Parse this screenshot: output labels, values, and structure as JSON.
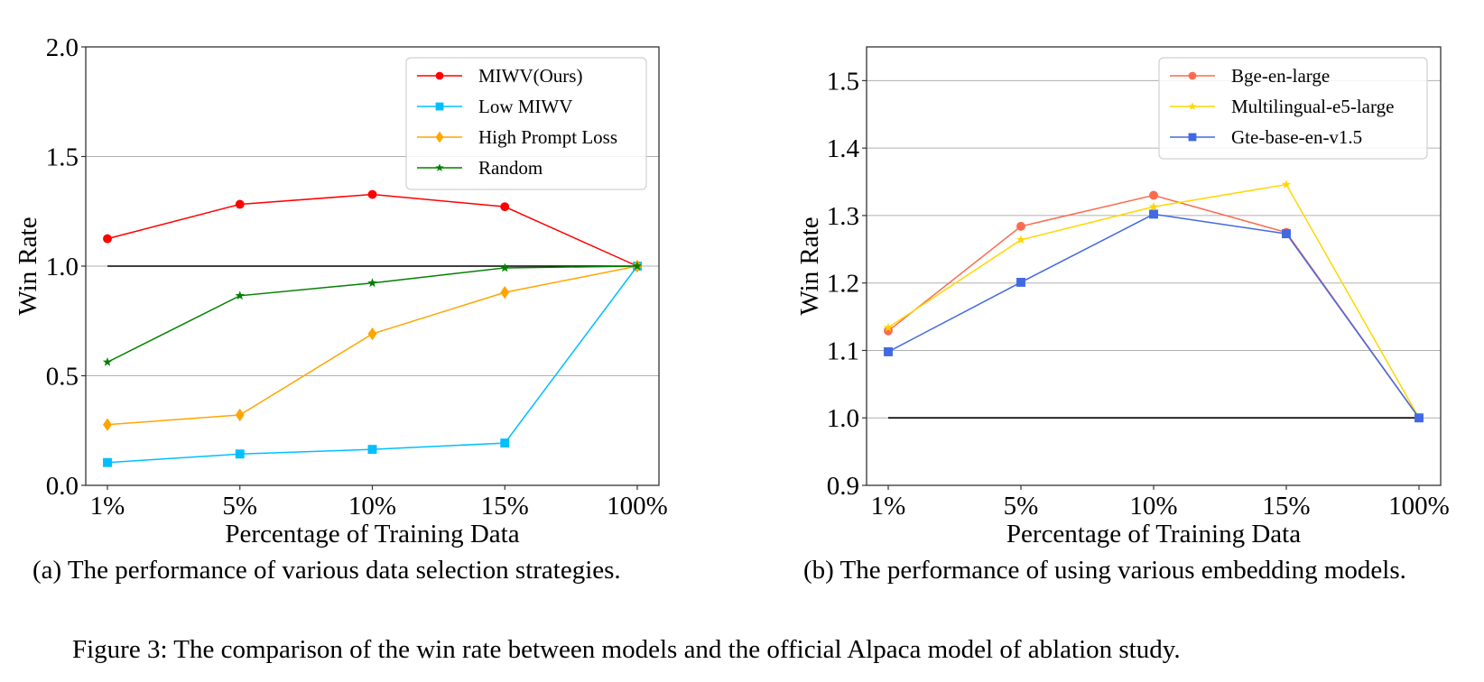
{
  "figure_caption": "Figure 3: The comparison of the win rate between models and the official Alpaca model of ablation study.",
  "chart_data": [
    {
      "id": "a",
      "type": "line",
      "caption": "(a) The performance of various data selection strategies.",
      "title": "",
      "xlabel": "Percentage of Training Data",
      "ylabel": "Win Rate",
      "categories": [
        "1%",
        "5%",
        "10%",
        "15%",
        "100%"
      ],
      "ylim": [
        0.0,
        2.0
      ],
      "yticks": [
        0.0,
        0.5,
        1.0,
        1.5,
        2.0
      ],
      "ytick_labels": [
        "0.0",
        "0.5",
        "1.0",
        "1.5",
        "2.0"
      ],
      "grid": "horizontal",
      "reference_line": 1.0,
      "legend_position": "upper-right",
      "series": [
        {
          "name": "MIWV(Ours)",
          "color": "#ff0000",
          "marker": "circle",
          "values": [
            1.125,
            1.282,
            1.327,
            1.271,
            1.0
          ]
        },
        {
          "name": "Low MIWV",
          "color": "#00bfff",
          "marker": "square",
          "values": [
            0.104,
            0.143,
            0.164,
            0.193,
            1.0
          ]
        },
        {
          "name": "High Prompt Loss",
          "color": "#ffa500",
          "marker": "diamond",
          "values": [
            0.277,
            0.321,
            0.691,
            0.88,
            1.0
          ]
        },
        {
          "name": "Random",
          "color": "#008000",
          "marker": "star",
          "values": [
            0.562,
            0.865,
            0.923,
            0.992,
            1.0
          ]
        }
      ]
    },
    {
      "id": "b",
      "type": "line",
      "caption": "(b) The performance of using various embedding models.",
      "title": "",
      "xlabel": "Percentage of Training Data",
      "ylabel": "Win Rate",
      "categories": [
        "1%",
        "5%",
        "10%",
        "15%",
        "100%"
      ],
      "ylim": [
        0.9,
        1.55
      ],
      "yticks": [
        0.9,
        1.0,
        1.1,
        1.2,
        1.3,
        1.4,
        1.5
      ],
      "ytick_labels": [
        "0.9",
        "1.0",
        "1.1",
        "1.2",
        "1.3",
        "1.4",
        "1.5"
      ],
      "grid": "horizontal",
      "reference_line": 1.0,
      "legend_position": "upper-right",
      "series": [
        {
          "name": "Bge-en-large",
          "color": "#fa6b4f",
          "marker": "circle",
          "values": [
            1.129,
            1.284,
            1.33,
            1.275,
            1.0
          ]
        },
        {
          "name": "Multilingual-e5-large",
          "color": "#ffd700",
          "marker": "star",
          "values": [
            1.134,
            1.264,
            1.313,
            1.346,
            1.0
          ]
        },
        {
          "name": "Gte-base-en-v1.5",
          "color": "#4169e1",
          "marker": "square",
          "values": [
            1.098,
            1.201,
            1.302,
            1.273,
            1.0
          ]
        }
      ]
    }
  ]
}
